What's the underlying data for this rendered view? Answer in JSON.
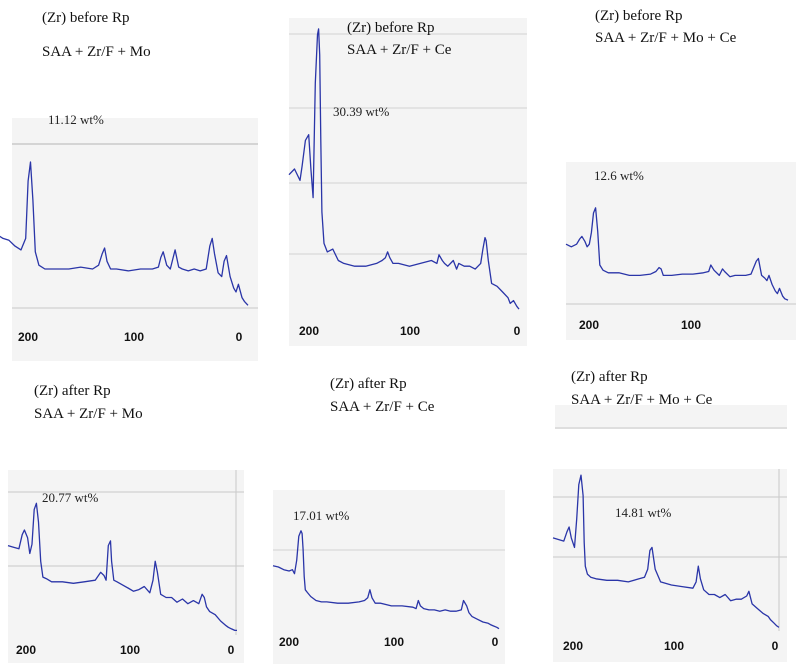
{
  "chart_data": [
    {
      "type": "line",
      "title_line1": "(Zr) before Rp",
      "title_line2": "SAA + Zr/F + Mo",
      "annotation": "11.12 wt%",
      "xlim": [
        200,
        0
      ],
      "ylim": [
        0,
        100
      ],
      "x_ticks": [
        "200",
        "100",
        "0"
      ],
      "color": "#2a35a8",
      "series": [
        {
          "name": "spectrum",
          "x": [
            210,
            205,
            200,
            195,
            190,
            186,
            184,
            182,
            180,
            178,
            175,
            170,
            160,
            150,
            140,
            130,
            125,
            122,
            120,
            118,
            115,
            110,
            100,
            90,
            80,
            75,
            73,
            71,
            68,
            65,
            63,
            61,
            58,
            55,
            50,
            45,
            40,
            35,
            32,
            30,
            28,
            25,
            22,
            20,
            18,
            15,
            12,
            10,
            8,
            5,
            3,
            0
          ],
          "y": [
            40,
            38,
            37,
            34,
            32,
            38,
            68,
            78,
            58,
            31,
            24,
            22,
            22,
            22,
            23,
            22,
            24,
            30,
            33,
            26,
            22,
            22,
            21,
            22,
            22,
            23,
            28,
            31,
            24,
            22,
            27,
            32,
            23,
            22,
            21,
            22,
            21,
            22,
            34,
            38,
            30,
            20,
            18,
            26,
            29,
            18,
            12,
            10,
            14,
            7,
            5,
            3
          ]
        }
      ]
    },
    {
      "type": "line",
      "title_line1": "(Zr) before Rp",
      "title_line2": "SAA + Zr/F + Ce",
      "annotation": "30.39 wt%",
      "xlim": [
        210,
        0
      ],
      "ylim": [
        0,
        100
      ],
      "x_ticks": [
        "200",
        "100",
        "0"
      ],
      "color": "#2a35a8",
      "series": [
        {
          "name": "spectrum",
          "x": [
            210,
            205,
            200,
            198,
            195,
            192,
            190,
            188,
            186,
            184,
            183,
            182,
            181,
            180,
            178,
            175,
            170,
            165,
            160,
            150,
            140,
            130,
            125,
            122,
            120,
            118,
            115,
            110,
            100,
            90,
            80,
            75,
            73,
            70,
            68,
            65,
            60,
            57,
            55,
            50,
            45,
            40,
            35,
            33,
            31,
            30,
            28,
            25,
            20,
            15,
            10,
            8,
            5,
            2,
            0
          ],
          "y": [
            48,
            50,
            46,
            51,
            60,
            62,
            50,
            40,
            80,
            97,
            99,
            90,
            60,
            35,
            24,
            21,
            22,
            18,
            17,
            16,
            16,
            17,
            18,
            19,
            21,
            19,
            17,
            17,
            16,
            17,
            18,
            17,
            20,
            18,
            17,
            16,
            18,
            15,
            17,
            16,
            16,
            15,
            17,
            22,
            26,
            25,
            18,
            10,
            9,
            7,
            5,
            3,
            4,
            2,
            1
          ]
        }
      ]
    },
    {
      "type": "line",
      "title_line1": "(Zr) before Rp",
      "title_line2": "SAA + Zr/F + Mo + Ce",
      "annotation": "12.6 wt%",
      "xlim": [
        210,
        0
      ],
      "ylim": [
        0,
        100
      ],
      "x_ticks": [
        "200",
        "100"
      ],
      "color": "#2a35a8",
      "series": [
        {
          "name": "spectrum",
          "x": [
            210,
            205,
            200,
            197,
            195,
            192,
            190,
            188,
            186,
            184,
            182,
            180,
            178,
            175,
            170,
            160,
            150,
            140,
            130,
            125,
            122,
            120,
            118,
            115,
            110,
            100,
            90,
            80,
            75,
            73,
            70,
            65,
            62,
            60,
            55,
            50,
            45,
            40,
            35,
            30,
            28,
            25,
            22,
            20,
            18,
            15,
            12,
            10,
            8,
            5,
            3,
            0
          ],
          "y": [
            46,
            44,
            46,
            50,
            52,
            48,
            44,
            46,
            55,
            70,
            74,
            56,
            30,
            26,
            24,
            24,
            22,
            22,
            23,
            25,
            28,
            27,
            22,
            22,
            22,
            23,
            23,
            24,
            25,
            30,
            26,
            22,
            27,
            25,
            21,
            22,
            22,
            22,
            23,
            33,
            35,
            22,
            20,
            18,
            22,
            15,
            10,
            8,
            12,
            6,
            4,
            3
          ]
        }
      ]
    },
    {
      "type": "line",
      "title_line1": "(Zr) after Rp",
      "title_line2": "SAA + Zr/F + Mo",
      "annotation": "20.77 wt%",
      "xlim": [
        210,
        0
      ],
      "ylim": [
        0,
        100
      ],
      "x_ticks": [
        "200",
        "100",
        "0"
      ],
      "color": "#2a35a8",
      "series": [
        {
          "name": "spectrum",
          "x": [
            210,
            205,
            200,
            197,
            195,
            192,
            190,
            188,
            186,
            184,
            182,
            180,
            178,
            175,
            170,
            160,
            150,
            140,
            130,
            125,
            122,
            120,
            118,
            116,
            115,
            113,
            110,
            105,
            100,
            95,
            90,
            85,
            80,
            77,
            75,
            73,
            70,
            65,
            60,
            55,
            50,
            45,
            40,
            35,
            32,
            30,
            28,
            25,
            20,
            15,
            10,
            8,
            5,
            2,
            0
          ],
          "y": [
            55,
            54,
            53,
            62,
            65,
            60,
            50,
            56,
            78,
            82,
            70,
            45,
            35,
            34,
            32,
            32,
            31,
            32,
            33,
            38,
            36,
            33,
            55,
            58,
            45,
            33,
            32,
            30,
            28,
            26,
            27,
            29,
            25,
            33,
            45,
            38,
            24,
            22,
            22,
            19,
            21,
            18,
            20,
            18,
            24,
            22,
            16,
            13,
            11,
            7,
            4,
            3,
            2,
            1,
            1
          ]
        }
      ]
    },
    {
      "type": "line",
      "title_line1": "(Zr) after Rp",
      "title_line2": "SAA + Zr/F + Ce",
      "annotation": "17.01 wt%",
      "xlim": [
        210,
        0
      ],
      "ylim": [
        0,
        100
      ],
      "x_ticks": [
        "200",
        "100",
        "0"
      ],
      "color": "#2a35a8",
      "series": [
        {
          "name": "spectrum",
          "x": [
            210,
            205,
            200,
            195,
            192,
            190,
            188,
            186,
            184,
            183,
            182,
            181,
            180,
            178,
            175,
            170,
            165,
            160,
            150,
            140,
            130,
            125,
            122,
            120,
            118,
            115,
            110,
            100,
            90,
            80,
            77,
            75,
            73,
            70,
            65,
            60,
            55,
            50,
            45,
            40,
            35,
            33,
            30,
            28,
            25,
            20,
            15,
            10,
            8,
            5,
            2,
            0
          ],
          "y": [
            48,
            47,
            45,
            44,
            45,
            42,
            52,
            70,
            74,
            72,
            60,
            40,
            30,
            28,
            25,
            22,
            21,
            21,
            20,
            20,
            21,
            22,
            24,
            30,
            24,
            20,
            20,
            18,
            18,
            17,
            16,
            22,
            18,
            16,
            15,
            15,
            14,
            15,
            14,
            14,
            15,
            22,
            18,
            13,
            10,
            8,
            6,
            5,
            4,
            3,
            2,
            1
          ]
        }
      ]
    },
    {
      "type": "line",
      "title_line1": "(Zr) after Rp",
      "title_line2": "SAA + Zr/F + Mo + Ce",
      "annotation": "14.81 wt%",
      "xlim": [
        210,
        0
      ],
      "ylim": [
        0,
        100
      ],
      "x_ticks": [
        "200",
        "100",
        "0"
      ],
      "color": "#2a35a8",
      "series": [
        {
          "name": "spectrum",
          "x": [
            210,
            205,
            200,
            197,
            195,
            193,
            190,
            188,
            186,
            184,
            182,
            181,
            180,
            178,
            175,
            170,
            160,
            150,
            140,
            130,
            125,
            122,
            120,
            118,
            115,
            110,
            100,
            90,
            80,
            77,
            75,
            73,
            70,
            65,
            60,
            55,
            50,
            45,
            40,
            35,
            30,
            28,
            25,
            20,
            15,
            10,
            8,
            5,
            2,
            0
          ],
          "y": [
            58,
            57,
            56,
            62,
            65,
            58,
            52,
            70,
            92,
            98,
            85,
            55,
            40,
            35,
            33,
            32,
            31,
            31,
            30,
            32,
            33,
            38,
            50,
            52,
            38,
            30,
            28,
            27,
            26,
            30,
            40,
            32,
            25,
            22,
            22,
            20,
            22,
            18,
            19,
            19,
            21,
            24,
            16,
            13,
            10,
            8,
            6,
            4,
            2,
            1
          ]
        }
      ]
    }
  ]
}
